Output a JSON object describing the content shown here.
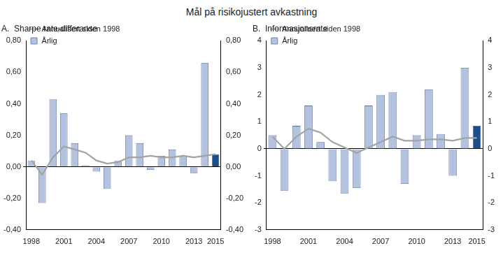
{
  "title": "Mål på risikojustert avkastning",
  "chart_data": [
    {
      "type": "bar",
      "title": "A.  Sharpe rate-differanse",
      "categories": [
        "1998",
        null,
        null,
        "2001",
        null,
        null,
        "2004",
        null,
        null,
        "2007",
        null,
        null,
        "2010",
        null,
        null,
        "2013",
        null,
        "2015"
      ],
      "series": [
        {
          "name": "Årlig",
          "type": "bar",
          "colors": [
            "#b3c2df",
            "#b3c2df",
            "#b3c2df",
            "#b3c2df",
            "#b3c2df",
            "#b3c2df",
            "#b3c2df",
            "#b3c2df",
            "#b3c2df",
            "#b3c2df",
            "#b3c2df",
            "#b3c2df",
            "#b3c2df",
            "#b3c2df",
            "#b3c2df",
            "#b3c2df",
            "#b3c2df",
            "#1d4e8c"
          ],
          "values": [
            0.04,
            -0.23,
            0.43,
            0.34,
            0.15,
            0.01,
            -0.03,
            -0.14,
            0.04,
            0.2,
            0.15,
            -0.02,
            0.07,
            0.11,
            0.07,
            -0.04,
            0.66,
            0.08
          ]
        },
        {
          "name": "Annualisert siden 1998",
          "type": "line",
          "color": "#a3a3a3",
          "values": [
            0.04,
            -0.05,
            0.06,
            0.13,
            0.11,
            0.09,
            0.04,
            0.02,
            0.03,
            0.06,
            0.06,
            0.07,
            0.06,
            0.06,
            0.07,
            0.06,
            0.07,
            0.08
          ]
        }
      ],
      "ylim": [
        -0.4,
        0.8
      ],
      "yticks": [
        {
          "value": -0.4,
          "label": "-0,40"
        },
        {
          "value": -0.2,
          "label": "-0,20"
        },
        {
          "value": 0,
          "label": "0,00"
        },
        {
          "value": 0.2,
          "label": "0,20"
        },
        {
          "value": 0.4,
          "label": "0,40"
        },
        {
          "value": 0.6,
          "label": "0,60"
        },
        {
          "value": 0.8,
          "label": "0,80"
        }
      ],
      "y2lim": [
        -0.4,
        0.8
      ],
      "y2ticks": [
        {
          "value": -0.4,
          "label": "-0,40"
        },
        {
          "value": -0.2,
          "label": "-0,20"
        },
        {
          "value": 0,
          "label": "0,00"
        },
        {
          "value": 0.2,
          "label": "0,20"
        },
        {
          "value": 0.4,
          "label": "0,40"
        },
        {
          "value": 0.6,
          "label": "0,60"
        },
        {
          "value": 0.8,
          "label": "0,80"
        }
      ],
      "grid": false,
      "legend": "top-left"
    },
    {
      "type": "bar",
      "title": "B.  Informasjonsrate",
      "categories": [
        "1998",
        null,
        null,
        "2001",
        null,
        null,
        "2004",
        null,
        null,
        "2007",
        null,
        null,
        "2010",
        null,
        null,
        "2013",
        null,
        "2015"
      ],
      "series": [
        {
          "name": "Årlig",
          "type": "bar",
          "colors": [
            "#b3c2df",
            "#b3c2df",
            "#b3c2df",
            "#b3c2df",
            "#b3c2df",
            "#b3c2df",
            "#b3c2df",
            "#b3c2df",
            "#b3c2df",
            "#b3c2df",
            "#b3c2df",
            "#b3c2df",
            "#b3c2df",
            "#b3c2df",
            "#b3c2df",
            "#b3c2df",
            "#b3c2df",
            "#1d4e8c"
          ],
          "values": [
            0.5,
            -1.55,
            0.85,
            1.6,
            0.25,
            -1.2,
            -1.65,
            -1.45,
            1.6,
            2.0,
            2.1,
            -1.3,
            0.5,
            2.2,
            0.55,
            -1.0,
            3.0,
            0.85
          ]
        },
        {
          "name": "Annualisert siden 1998",
          "type": "line",
          "color": "#a3a3a3",
          "values": [
            0.45,
            0.0,
            0.45,
            0.75,
            0.6,
            0.25,
            0.05,
            -0.15,
            0.05,
            0.25,
            0.45,
            0.3,
            0.3,
            0.35,
            0.35,
            0.3,
            0.4,
            0.4
          ]
        }
      ],
      "ylim": [
        -3,
        4
      ],
      "yticks": [
        -3,
        -2,
        -1,
        0,
        1,
        2,
        3,
        4
      ],
      "y2lim": [
        -3,
        4
      ],
      "y2ticks": [
        -3,
        -2,
        -1,
        0,
        1,
        2,
        3,
        4
      ],
      "grid": false,
      "legend": "top-left"
    }
  ]
}
